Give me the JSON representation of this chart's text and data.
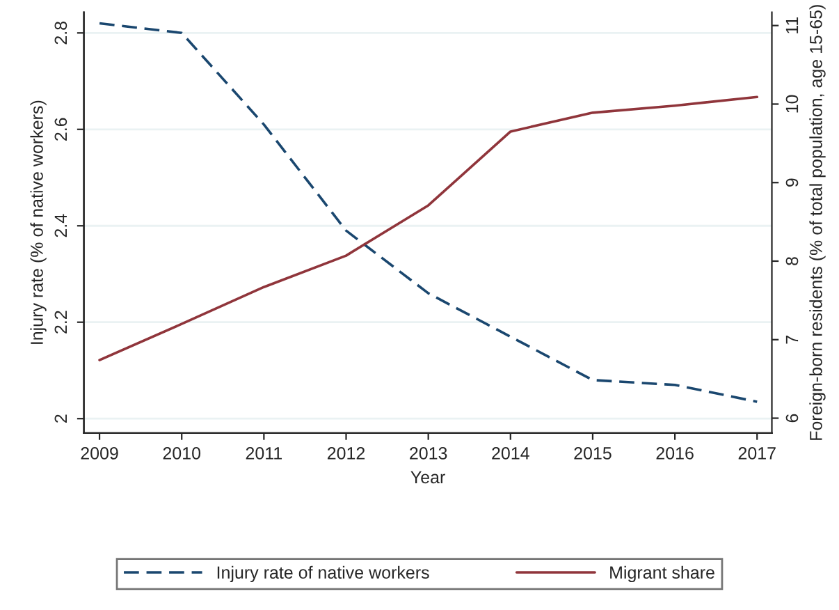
{
  "chart_data": {
    "type": "line",
    "xlabel": "Year",
    "ylabel": "Injury rate (% of native workers)",
    "y2label": "Foreign-born residents (% of total population, age 15-65)",
    "x": [
      2009,
      2010,
      2011,
      2012,
      2013,
      2014,
      2015,
      2016,
      2017
    ],
    "series": [
      {
        "name": "Injury rate of native workers",
        "color": "#1a476f",
        "line_style": "dashed",
        "values": [
          2.82,
          2.8,
          2.61,
          2.39,
          2.26,
          2.17,
          2.08,
          2.07,
          2.035
        ]
      },
      {
        "name": "Migrant share",
        "color": "#90353b",
        "line_style": "solid",
        "axis": "y2",
        "values": [
          6.74,
          7.2,
          7.67,
          8.07,
          8.71,
          9.65,
          9.89,
          9.98,
          10.09
        ]
      }
    ],
    "xlim": [
      2008.81,
      2017.18
    ],
    "xticks": [
      2009,
      2010,
      2011,
      2012,
      2013,
      2014,
      2015,
      2016,
      2017
    ],
    "ylim": [
      1.97,
      2.843
    ],
    "yticks": [
      2,
      2.2,
      2.4,
      2.6,
      2.8
    ],
    "y2lim": [
      5.81,
      11.17
    ],
    "y2ticks": [
      6,
      7,
      8,
      9,
      10,
      11
    ],
    "grid": "y",
    "legend": "bottom"
  }
}
